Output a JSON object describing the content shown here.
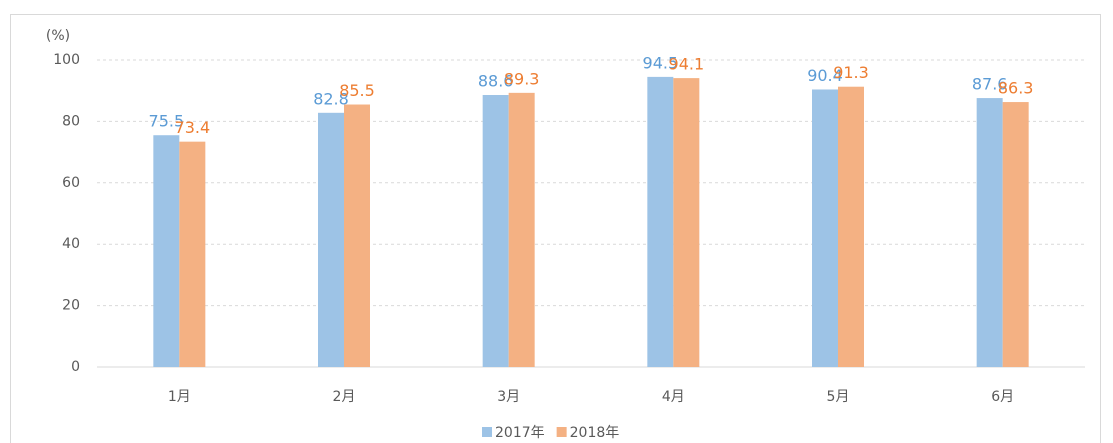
{
  "chart_data": {
    "type": "bar",
    "unit_label": "(%)",
    "categories": [
      "1月",
      "2月",
      "3月",
      "4月",
      "5月",
      "6月"
    ],
    "series": [
      {
        "name": "2017年",
        "color": "#9dc3e6",
        "label_color": "#5b9bd5",
        "values": [
          75.5,
          82.8,
          88.6,
          94.5,
          90.4,
          87.6
        ]
      },
      {
        "name": "2018年",
        "color": "#f4b183",
        "label_color": "#ed7d31",
        "values": [
          73.4,
          85.5,
          89.3,
          94.1,
          91.3,
          86.3
        ]
      }
    ],
    "ylim": [
      0,
      100
    ],
    "yticks": [
      0,
      20,
      40,
      60,
      80,
      100
    ],
    "grid": true,
    "legend": "bottom"
  }
}
